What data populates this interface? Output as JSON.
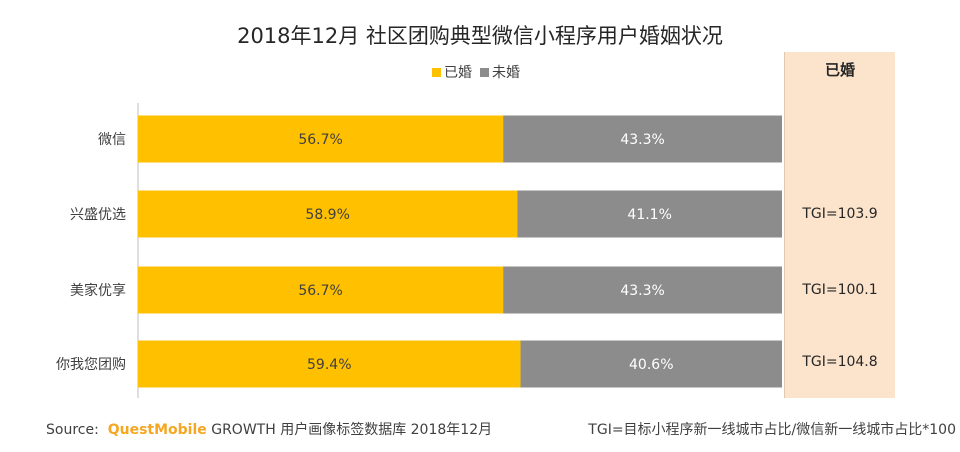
{
  "chart_data": {
    "type": "bar",
    "orientation": "horizontal",
    "stacked": true,
    "title": "2018年12月 社区团购典型微信小程序用户婚姻状况",
    "categories": [
      "微信",
      "兴盛优选",
      "美家优享",
      "你我您团购"
    ],
    "series": [
      {
        "name": "已婚",
        "values": [
          56.7,
          58.9,
          56.7,
          59.4
        ],
        "labels": [
          "56.7%",
          "58.9%",
          "56.7%",
          "59.4%"
        ],
        "color": "#ffc000",
        "label_color": "#404040"
      },
      {
        "name": "未婚",
        "values": [
          43.3,
          41.1,
          43.3,
          40.6
        ],
        "labels": [
          "43.3%",
          "41.1%",
          "43.3%",
          "40.6%"
        ],
        "color": "#8c8c8c",
        "label_color": "#ffffff"
      }
    ],
    "xlim": [
      0,
      100
    ],
    "legend_position": "top",
    "grid": false,
    "tgi_panel": {
      "header": "已婚",
      "values": [
        "",
        "TGI=103.9",
        "TGI=100.1",
        "TGI=104.8"
      ],
      "background": "#fce4cc"
    }
  },
  "footer": {
    "source_prefix": "Source:",
    "source_brand": "QuestMobile",
    "source_rest": "GROWTH 用户画像标签数据库 2018年12月",
    "tgi_note": "TGI=目标小程序新一线城市占比/微信新一线城市占比*100"
  }
}
